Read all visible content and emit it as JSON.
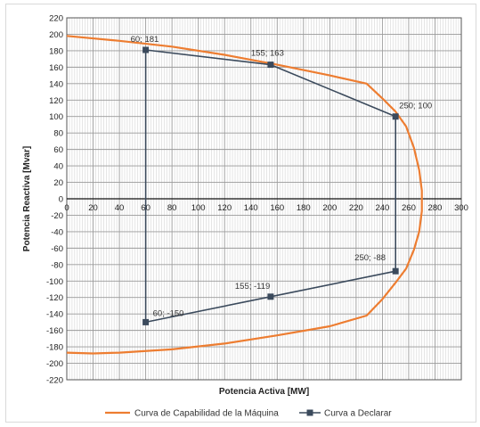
{
  "chart_data": {
    "type": "line",
    "title": "",
    "xlabel": "Potencia Activa [MW]",
    "ylabel": "Potencia Reactiva [Mvar]",
    "xlim": [
      0,
      300
    ],
    "ylim": [
      -220,
      220
    ],
    "x_ticks": [
      0,
      20,
      40,
      60,
      80,
      100,
      120,
      140,
      160,
      180,
      200,
      220,
      240,
      260,
      280,
      300
    ],
    "y_ticks": [
      220,
      200,
      180,
      160,
      140,
      120,
      100,
      80,
      60,
      40,
      20,
      0,
      -20,
      -40,
      -60,
      -80,
      -100,
      -120,
      -140,
      -160,
      -180,
      -200,
      -220
    ],
    "grid": true,
    "legend_position": "bottom",
    "series": [
      {
        "name": "Curva de Capabilidad de la Máquina",
        "color": "#ed7d31",
        "marker": "none",
        "points": [
          [
            0,
            198
          ],
          [
            40,
            192
          ],
          [
            80,
            185
          ],
          [
            120,
            175
          ],
          [
            160,
            163
          ],
          [
            200,
            150
          ],
          [
            228,
            140
          ],
          [
            240,
            122
          ],
          [
            250,
            106
          ],
          [
            258,
            88
          ],
          [
            264,
            62
          ],
          [
            268,
            35
          ],
          [
            270,
            10
          ],
          [
            270,
            -15
          ],
          [
            268,
            -40
          ],
          [
            264,
            -62
          ],
          [
            258,
            -85
          ],
          [
            250,
            -102
          ],
          [
            240,
            -122
          ],
          [
            228,
            -142
          ],
          [
            200,
            -155
          ],
          [
            160,
            -166
          ],
          [
            120,
            -176
          ],
          [
            80,
            -183
          ],
          [
            40,
            -187
          ],
          [
            20,
            -188
          ],
          [
            0,
            -187
          ]
        ]
      },
      {
        "name": "Curva a Declarar",
        "color": "#3b4a5c",
        "marker": "square",
        "points": [
          [
            60,
            181
          ],
          [
            155,
            163
          ],
          [
            250,
            100
          ],
          [
            250,
            -88
          ],
          [
            155,
            -119
          ],
          [
            60,
            -150
          ],
          [
            60,
            181
          ]
        ]
      }
    ],
    "annotations": [
      {
        "text": "60; 181",
        "x": 60,
        "y": 181
      },
      {
        "text": "155; 163",
        "x": 155,
        "y": 163
      },
      {
        "text": "250; 100",
        "x": 250,
        "y": 100
      },
      {
        "text": "250; -88",
        "x": 250,
        "y": -88
      },
      {
        "text": "155; -119",
        "x": 155,
        "y": -119
      },
      {
        "text": "60; -150",
        "x": 60,
        "y": -150
      }
    ]
  }
}
